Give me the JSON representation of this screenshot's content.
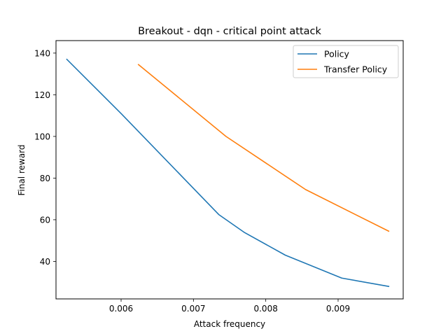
{
  "chart_data": {
    "type": "line",
    "title": "Breakout - dqn - critical point attack",
    "xlabel": "Attack frequency",
    "ylabel": "Final reward",
    "xlim": [
      0.0051,
      0.0099
    ],
    "ylim": [
      22,
      146
    ],
    "xticks": [
      0.006,
      0.007,
      0.008,
      0.009
    ],
    "xtick_labels": [
      "0.006",
      "0.007",
      "0.008",
      "0.009"
    ],
    "yticks": [
      40,
      60,
      80,
      100,
      120,
      140
    ],
    "ytick_labels": [
      "40",
      "60",
      "80",
      "100",
      "120",
      "140"
    ],
    "grid": false,
    "legend_position": "top-right",
    "series": [
      {
        "name": "Policy",
        "color": "#1f77b4",
        "x": [
          0.00525,
          0.006,
          0.00735,
          0.0077,
          0.00827,
          0.00905,
          0.0097
        ],
        "y": [
          137,
          111,
          62.5,
          54,
          43,
          32,
          28
        ]
      },
      {
        "name": "Transfer Policy",
        "color": "#ff7f0e",
        "x": [
          0.00624,
          0.00745,
          0.00855,
          0.0097
        ],
        "y": [
          134.5,
          100,
          74.5,
          54.5
        ]
      }
    ]
  }
}
